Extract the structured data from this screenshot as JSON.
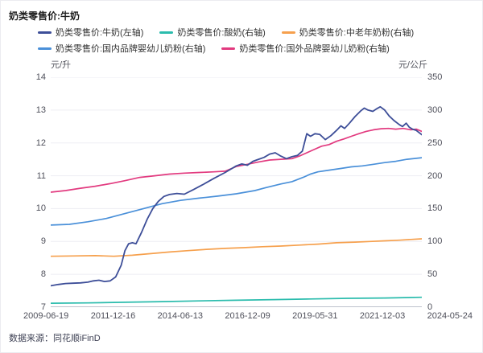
{
  "title": "奶类零售价:牛奶",
  "source": "数据来源：同花顺iFinD",
  "units": {
    "left": "元/升",
    "right": "元/公斤"
  },
  "colors": {
    "navy": "#3d4e98",
    "teal": "#2bbcad",
    "orange": "#f6a04d",
    "blue": "#4a90d9",
    "pink": "#e23a7f",
    "grid_line": "#ededf3",
    "axis_line": "#a9adbc"
  },
  "chart_data": {
    "type": "line",
    "title": "奶类零售价:牛奶",
    "legend_position": "top",
    "grid": true,
    "x_axis": {
      "labels": [
        "2009-06-19",
        "2011-12-16",
        "2014-06-13",
        "2016-12-09",
        "2019-05-31",
        "2021-12-03",
        "2024-05-24"
      ]
    },
    "left_axis": {
      "unit": "元/升",
      "range": [
        7,
        14
      ],
      "ticks": [
        "14",
        "13",
        "12",
        "11",
        "10",
        "9",
        "8",
        "7"
      ]
    },
    "right_axis": {
      "unit": "元/公斤",
      "range": [
        0,
        350
      ],
      "ticks": [
        "350",
        "300",
        "250",
        "200",
        "150",
        "100",
        "50",
        "0"
      ]
    },
    "series": [
      {
        "id": "milk",
        "name": "奶类零售价:牛奶(左轴)",
        "axis": "left",
        "color": "#3d4e98",
        "width": 1.8,
        "z": 5,
        "points": [
          [
            0,
            7.65
          ],
          [
            0.02,
            7.69
          ],
          [
            0.04,
            7.72
          ],
          [
            0.06,
            7.73
          ],
          [
            0.08,
            7.74
          ],
          [
            0.1,
            7.76
          ],
          [
            0.115,
            7.8
          ],
          [
            0.13,
            7.82
          ],
          [
            0.145,
            7.78
          ],
          [
            0.16,
            7.8
          ],
          [
            0.175,
            7.92
          ],
          [
            0.19,
            8.28
          ],
          [
            0.2,
            8.72
          ],
          [
            0.21,
            8.93
          ],
          [
            0.22,
            8.96
          ],
          [
            0.23,
            8.93
          ],
          [
            0.245,
            9.28
          ],
          [
            0.26,
            9.68
          ],
          [
            0.275,
            10.0
          ],
          [
            0.29,
            10.22
          ],
          [
            0.305,
            10.37
          ],
          [
            0.32,
            10.43
          ],
          [
            0.34,
            10.46
          ],
          [
            0.36,
            10.44
          ],
          [
            0.385,
            10.58
          ],
          [
            0.41,
            10.73
          ],
          [
            0.44,
            10.92
          ],
          [
            0.47,
            11.1
          ],
          [
            0.5,
            11.3
          ],
          [
            0.515,
            11.36
          ],
          [
            0.53,
            11.32
          ],
          [
            0.545,
            11.44
          ],
          [
            0.56,
            11.5
          ],
          [
            0.575,
            11.56
          ],
          [
            0.59,
            11.66
          ],
          [
            0.605,
            11.7
          ],
          [
            0.62,
            11.6
          ],
          [
            0.635,
            11.52
          ],
          [
            0.65,
            11.58
          ],
          [
            0.665,
            11.62
          ],
          [
            0.678,
            11.75
          ],
          [
            0.69,
            12.28
          ],
          [
            0.7,
            12.2
          ],
          [
            0.712,
            12.28
          ],
          [
            0.725,
            12.26
          ],
          [
            0.74,
            12.1
          ],
          [
            0.755,
            12.22
          ],
          [
            0.77,
            12.38
          ],
          [
            0.782,
            12.52
          ],
          [
            0.792,
            12.44
          ],
          [
            0.805,
            12.6
          ],
          [
            0.82,
            12.8
          ],
          [
            0.835,
            12.97
          ],
          [
            0.845,
            13.06
          ],
          [
            0.855,
            13.0
          ],
          [
            0.868,
            12.96
          ],
          [
            0.88,
            13.05
          ],
          [
            0.888,
            13.1
          ],
          [
            0.9,
            13.0
          ],
          [
            0.912,
            12.82
          ],
          [
            0.925,
            12.68
          ],
          [
            0.94,
            12.55
          ],
          [
            0.948,
            12.5
          ],
          [
            0.958,
            12.6
          ],
          [
            0.966,
            12.48
          ],
          [
            0.975,
            12.42
          ],
          [
            0.985,
            12.38
          ],
          [
            1,
            12.25
          ]
        ]
      },
      {
        "id": "yogurt",
        "name": "奶类零售价:酸奶(右轴)",
        "axis": "right",
        "color": "#2bbcad",
        "width": 1.7,
        "z": 1,
        "points": [
          [
            0,
            6
          ],
          [
            0.1,
            6.5
          ],
          [
            0.2,
            7.5
          ],
          [
            0.3,
            8.5
          ],
          [
            0.4,
            9.5
          ],
          [
            0.5,
            10.5
          ],
          [
            0.6,
            11.5
          ],
          [
            0.7,
            12.5
          ],
          [
            0.8,
            13.5
          ],
          [
            0.9,
            14
          ],
          [
            1,
            15
          ]
        ]
      },
      {
        "id": "senior-milk-powder",
        "name": "奶类零售价:中老年奶粉(右轴)",
        "axis": "right",
        "color": "#f6a04d",
        "width": 1.7,
        "z": 2,
        "points": [
          [
            0,
            77.5
          ],
          [
            0.06,
            78
          ],
          [
            0.12,
            78.5
          ],
          [
            0.17,
            77.5
          ],
          [
            0.22,
            79
          ],
          [
            0.27,
            81.5
          ],
          [
            0.32,
            84
          ],
          [
            0.37,
            86
          ],
          [
            0.42,
            88
          ],
          [
            0.47,
            89.5
          ],
          [
            0.52,
            90.5
          ],
          [
            0.57,
            92
          ],
          [
            0.62,
            93
          ],
          [
            0.67,
            94.5
          ],
          [
            0.72,
            96
          ],
          [
            0.77,
            98
          ],
          [
            0.82,
            99
          ],
          [
            0.86,
            100
          ],
          [
            0.9,
            101
          ],
          [
            0.94,
            102
          ],
          [
            0.97,
            103
          ],
          [
            1,
            104
          ]
        ]
      },
      {
        "id": "domestic-infant-formula",
        "name": "奶类零售价:国内品牌婴幼儿奶粉(右轴)",
        "axis": "right",
        "color": "#4a90d9",
        "width": 1.7,
        "z": 3,
        "points": [
          [
            0,
            125
          ],
          [
            0.05,
            126
          ],
          [
            0.1,
            130
          ],
          [
            0.15,
            135
          ],
          [
            0.2,
            142.5
          ],
          [
            0.25,
            150
          ],
          [
            0.3,
            157.5
          ],
          [
            0.35,
            162.5
          ],
          [
            0.4,
            166
          ],
          [
            0.45,
            169
          ],
          [
            0.5,
            172.5
          ],
          [
            0.55,
            177.5
          ],
          [
            0.58,
            182
          ],
          [
            0.62,
            187.5
          ],
          [
            0.65,
            191
          ],
          [
            0.68,
            197.5
          ],
          [
            0.7,
            202.5
          ],
          [
            0.72,
            206
          ],
          [
            0.75,
            208.5
          ],
          [
            0.78,
            211
          ],
          [
            0.81,
            213.5
          ],
          [
            0.84,
            215
          ],
          [
            0.87,
            217.5
          ],
          [
            0.9,
            220
          ],
          [
            0.93,
            222
          ],
          [
            0.96,
            225
          ],
          [
            1,
            227.5
          ]
        ]
      },
      {
        "id": "foreign-infant-formula",
        "name": "奶类零售价:国外品牌婴幼儿奶粉(右轴)",
        "axis": "right",
        "color": "#e23a7f",
        "width": 1.7,
        "z": 4,
        "points": [
          [
            0,
            175
          ],
          [
            0.04,
            177.5
          ],
          [
            0.08,
            181
          ],
          [
            0.12,
            184
          ],
          [
            0.16,
            188
          ],
          [
            0.2,
            192.5
          ],
          [
            0.24,
            197.5
          ],
          [
            0.28,
            200
          ],
          [
            0.32,
            202.5
          ],
          [
            0.36,
            204
          ],
          [
            0.4,
            205
          ],
          [
            0.44,
            206
          ],
          [
            0.47,
            207
          ],
          [
            0.5,
            214
          ],
          [
            0.53,
            217.5
          ],
          [
            0.56,
            221
          ],
          [
            0.59,
            224
          ],
          [
            0.62,
            225
          ],
          [
            0.65,
            226
          ],
          [
            0.67,
            230
          ],
          [
            0.69,
            235
          ],
          [
            0.71,
            240
          ],
          [
            0.73,
            245
          ],
          [
            0.75,
            247.5
          ],
          [
            0.77,
            252.5
          ],
          [
            0.79,
            256
          ],
          [
            0.81,
            260
          ],
          [
            0.83,
            264
          ],
          [
            0.85,
            267.5
          ],
          [
            0.87,
            270
          ],
          [
            0.89,
            271.5
          ],
          [
            0.91,
            272
          ],
          [
            0.93,
            271
          ],
          [
            0.95,
            272
          ],
          [
            0.97,
            270
          ],
          [
            0.985,
            271
          ],
          [
            1,
            267.5
          ]
        ]
      }
    ]
  }
}
